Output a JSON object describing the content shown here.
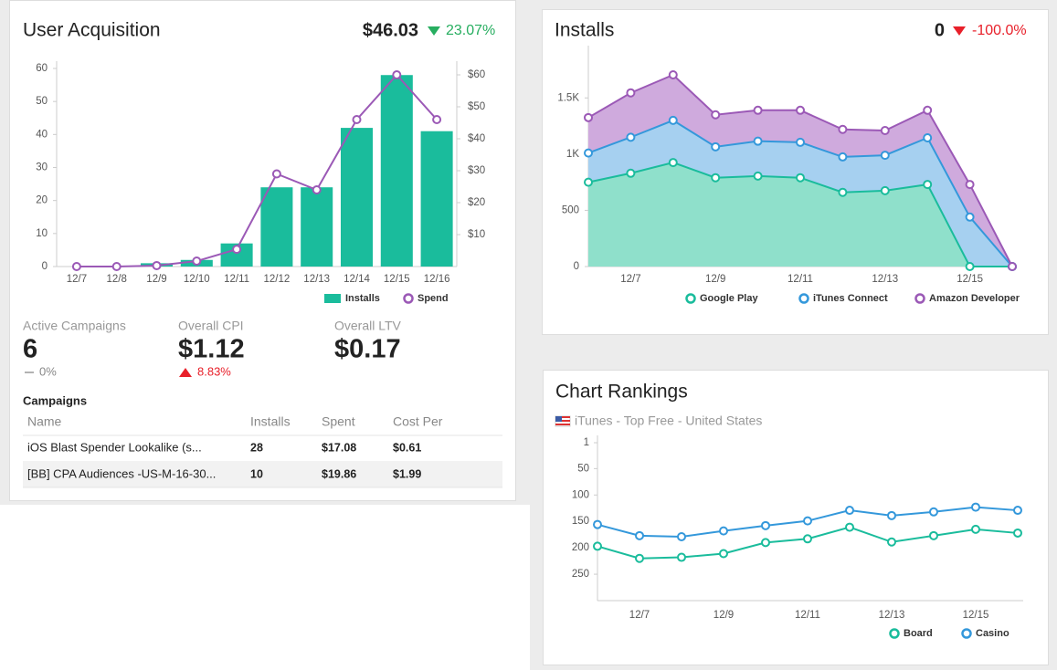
{
  "chart_data": [
    {
      "type": "bar",
      "title": "User Acquisition",
      "headline": "$46.03",
      "change": "23.07%",
      "categories": [
        "12/7",
        "12/8",
        "12/9",
        "12/10",
        "12/11",
        "12/12",
        "12/13",
        "12/14",
        "12/15",
        "12/16"
      ],
      "series": [
        {
          "name": "Installs",
          "type": "bar",
          "color": "#1abc9c",
          "values": [
            0,
            0,
            1,
            2,
            7,
            24,
            24,
            42,
            58,
            41
          ]
        },
        {
          "name": "Spend",
          "type": "line",
          "axis": "y2",
          "color": "#9b59b6",
          "values": [
            0,
            0,
            0.3,
            1.7,
            5.4,
            29,
            24,
            46,
            60,
            46
          ]
        }
      ],
      "ylim": [
        0,
        60
      ],
      "yticks": [
        0,
        10,
        20,
        30,
        40,
        50,
        60
      ],
      "y2lim": [
        0,
        62
      ],
      "y2ticks": [
        {
          "value": 10,
          "label": "$10"
        },
        {
          "value": 20,
          "label": "$20"
        },
        {
          "value": 30,
          "label": "$30"
        },
        {
          "value": 40,
          "label": "$40"
        },
        {
          "value": 50,
          "label": "$50"
        },
        {
          "value": 60,
          "label": "$60"
        }
      ]
    },
    {
      "type": "area",
      "stacked": true,
      "title": "Installs",
      "headline": "0",
      "change": "-100.0%",
      "categories": [
        null,
        "12/7",
        null,
        "12/9",
        null,
        "12/11",
        null,
        "12/13",
        null,
        "12/15",
        null
      ],
      "series": [
        {
          "name": "Google Play",
          "color": "#1abc9c",
          "fill": "#8fe0cb",
          "values": [
            750,
            830,
            925,
            790,
            805,
            790,
            660,
            675,
            730,
            0,
            0
          ]
        },
        {
          "name": "iTunes Connect",
          "color": "#3498db",
          "fill": "#a6d0f0",
          "values": [
            260,
            320,
            375,
            275,
            310,
            315,
            315,
            315,
            415,
            440,
            0
          ]
        },
        {
          "name": "Amazon Developer",
          "color": "#9b59b6",
          "fill": "#cfaadd",
          "values": [
            315,
            395,
            405,
            285,
            275,
            285,
            245,
            220,
            245,
            290,
            0
          ]
        }
      ],
      "ylim": [
        0,
        1900
      ],
      "yticks": [
        0,
        500,
        {
          "value": 1000,
          "label": "1K"
        },
        {
          "value": 1500,
          "label": "1.5K"
        }
      ]
    },
    {
      "type": "line",
      "title": "Chart Rankings",
      "subtitle": "iTunes - Top Free - United States",
      "y_inverted": true,
      "categories": [
        null,
        "12/7",
        null,
        "12/9",
        null,
        "12/11",
        null,
        "12/13",
        null,
        "12/15",
        null
      ],
      "series": [
        {
          "name": "Board",
          "color": "#1abc9c",
          "values": [
            197,
            220,
            218,
            211,
            190,
            183,
            161,
            189,
            177,
            165,
            172
          ]
        },
        {
          "name": "Casino",
          "color": "#3498db",
          "values": [
            156,
            177,
            179,
            168,
            158,
            149,
            129,
            139,
            132,
            123,
            129
          ]
        }
      ],
      "ylim": [
        1,
        300
      ],
      "yticks": [
        1,
        50,
        100,
        150,
        200,
        250
      ]
    }
  ],
  "stats": [
    {
      "label": "Active Campaigns",
      "value": "6",
      "change": "0%"
    },
    {
      "label": "Overall CPI",
      "value": "$1.12",
      "change": "8.83%"
    },
    {
      "label": "Overall LTV",
      "value": "$0.17"
    }
  ],
  "campaigns": {
    "title": "Campaigns",
    "columns": [
      "Name",
      "Installs",
      "Spent",
      "Cost Per"
    ],
    "rows": [
      [
        "iOS Blast Spender Lookalike (s...",
        "28",
        "$17.08",
        "$0.61"
      ],
      [
        "[BB] CPA Audiences -US-M-16-30...",
        "10",
        "$19.86",
        "$1.99"
      ]
    ]
  }
}
